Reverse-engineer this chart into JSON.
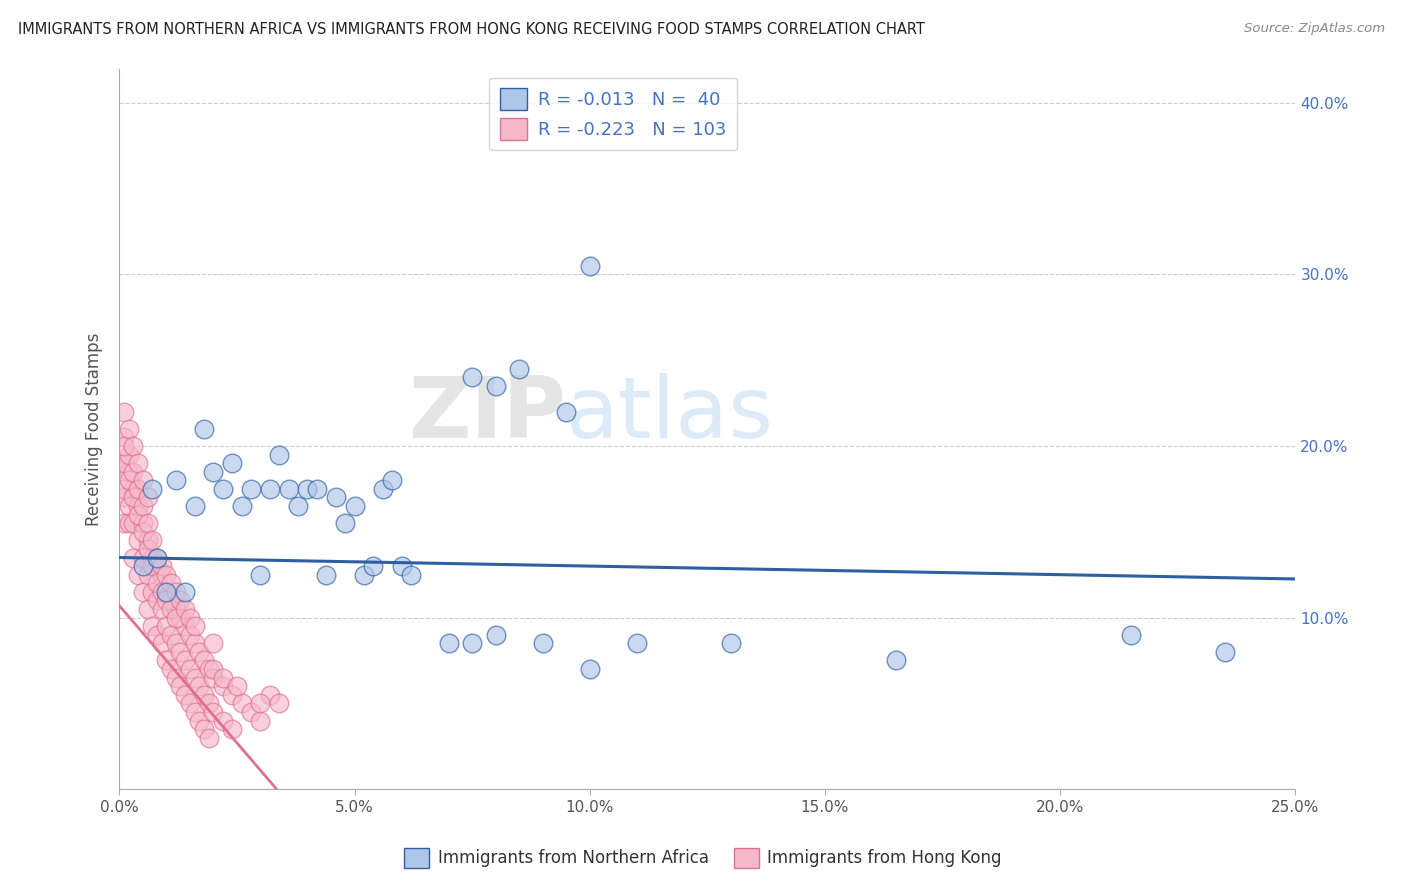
{
  "title": "IMMIGRANTS FROM NORTHERN AFRICA VS IMMIGRANTS FROM HONG KONG RECEIVING FOOD STAMPS CORRELATION CHART",
  "source": "Source: ZipAtlas.com",
  "ylabel": "Receiving Food Stamps",
  "xlim": [
    0.0,
    0.25
  ],
  "ylim": [
    0.0,
    0.42
  ],
  "xticks": [
    0.0,
    0.05,
    0.1,
    0.15,
    0.2,
    0.25
  ],
  "yticks": [
    0.0,
    0.1,
    0.2,
    0.3,
    0.4
  ],
  "xtick_labels": [
    "0.0%",
    "5.0%",
    "10.0%",
    "15.0%",
    "20.0%",
    "25.0%"
  ],
  "ytick_labels_right": [
    "",
    "10.0%",
    "20.0%",
    "30.0%",
    "40.0%"
  ],
  "color_blue": "#AEC6E8",
  "color_pink": "#F5B8CB",
  "trendline_blue_color": "#2E5FA3",
  "trendline_pink_color": "#E07090",
  "watermark_zip": "ZIP",
  "watermark_atlas": "atlas",
  "grid_color": "#CCCCCC",
  "background_color": "#FFFFFF",
  "legend_r1": "-0.013",
  "legend_n1": "40",
  "legend_r2": "-0.223",
  "legend_n2": "103",
  "blue_points": [
    [
      0.005,
      0.13
    ],
    [
      0.007,
      0.175
    ],
    [
      0.008,
      0.135
    ],
    [
      0.01,
      0.115
    ],
    [
      0.012,
      0.18
    ],
    [
      0.014,
      0.115
    ],
    [
      0.016,
      0.165
    ],
    [
      0.018,
      0.21
    ],
    [
      0.02,
      0.185
    ],
    [
      0.022,
      0.175
    ],
    [
      0.024,
      0.19
    ],
    [
      0.026,
      0.165
    ],
    [
      0.028,
      0.175
    ],
    [
      0.03,
      0.125
    ],
    [
      0.032,
      0.175
    ],
    [
      0.034,
      0.195
    ],
    [
      0.036,
      0.175
    ],
    [
      0.038,
      0.165
    ],
    [
      0.04,
      0.175
    ],
    [
      0.042,
      0.175
    ],
    [
      0.044,
      0.125
    ],
    [
      0.046,
      0.17
    ],
    [
      0.048,
      0.155
    ],
    [
      0.05,
      0.165
    ],
    [
      0.052,
      0.125
    ],
    [
      0.054,
      0.13
    ],
    [
      0.056,
      0.175
    ],
    [
      0.058,
      0.18
    ],
    [
      0.06,
      0.13
    ],
    [
      0.062,
      0.125
    ],
    [
      0.07,
      0.085
    ],
    [
      0.075,
      0.085
    ],
    [
      0.08,
      0.09
    ],
    [
      0.09,
      0.085
    ],
    [
      0.1,
      0.07
    ],
    [
      0.11,
      0.085
    ],
    [
      0.13,
      0.085
    ],
    [
      0.165,
      0.075
    ],
    [
      0.215,
      0.09
    ],
    [
      0.235,
      0.08
    ]
  ],
  "blue_high_points": [
    [
      0.1,
      0.305
    ],
    [
      0.085,
      0.245
    ],
    [
      0.095,
      0.22
    ],
    [
      0.075,
      0.24
    ],
    [
      0.08,
      0.235
    ]
  ],
  "pink_points": [
    [
      0.001,
      0.19
    ],
    [
      0.001,
      0.17
    ],
    [
      0.001,
      0.155
    ],
    [
      0.002,
      0.185
    ],
    [
      0.002,
      0.165
    ],
    [
      0.002,
      0.155
    ],
    [
      0.003,
      0.175
    ],
    [
      0.003,
      0.155
    ],
    [
      0.003,
      0.135
    ],
    [
      0.004,
      0.165
    ],
    [
      0.004,
      0.145
    ],
    [
      0.004,
      0.125
    ],
    [
      0.005,
      0.155
    ],
    [
      0.005,
      0.135
    ],
    [
      0.005,
      0.115
    ],
    [
      0.006,
      0.145
    ],
    [
      0.006,
      0.125
    ],
    [
      0.006,
      0.105
    ],
    [
      0.007,
      0.135
    ],
    [
      0.007,
      0.115
    ],
    [
      0.007,
      0.095
    ],
    [
      0.008,
      0.13
    ],
    [
      0.008,
      0.11
    ],
    [
      0.008,
      0.09
    ],
    [
      0.009,
      0.125
    ],
    [
      0.009,
      0.105
    ],
    [
      0.009,
      0.085
    ],
    [
      0.01,
      0.115
    ],
    [
      0.01,
      0.095
    ],
    [
      0.01,
      0.075
    ],
    [
      0.011,
      0.11
    ],
    [
      0.011,
      0.09
    ],
    [
      0.011,
      0.07
    ],
    [
      0.012,
      0.105
    ],
    [
      0.012,
      0.085
    ],
    [
      0.012,
      0.065
    ],
    [
      0.013,
      0.1
    ],
    [
      0.013,
      0.08
    ],
    [
      0.013,
      0.06
    ],
    [
      0.014,
      0.095
    ],
    [
      0.014,
      0.075
    ],
    [
      0.014,
      0.055
    ],
    [
      0.015,
      0.09
    ],
    [
      0.015,
      0.07
    ],
    [
      0.015,
      0.05
    ],
    [
      0.016,
      0.085
    ],
    [
      0.016,
      0.065
    ],
    [
      0.016,
      0.045
    ],
    [
      0.017,
      0.08
    ],
    [
      0.017,
      0.06
    ],
    [
      0.017,
      0.04
    ],
    [
      0.018,
      0.075
    ],
    [
      0.018,
      0.055
    ],
    [
      0.018,
      0.035
    ],
    [
      0.019,
      0.07
    ],
    [
      0.019,
      0.05
    ],
    [
      0.019,
      0.03
    ],
    [
      0.02,
      0.065
    ],
    [
      0.02,
      0.045
    ],
    [
      0.022,
      0.06
    ],
    [
      0.022,
      0.04
    ],
    [
      0.024,
      0.055
    ],
    [
      0.024,
      0.035
    ],
    [
      0.026,
      0.05
    ],
    [
      0.028,
      0.045
    ],
    [
      0.03,
      0.04
    ],
    [
      0.032,
      0.055
    ],
    [
      0.034,
      0.05
    ],
    [
      0.001,
      0.205
    ],
    [
      0.001,
      0.19
    ],
    [
      0.001,
      0.175
    ],
    [
      0.002,
      0.195
    ],
    [
      0.002,
      0.18
    ],
    [
      0.003,
      0.185
    ],
    [
      0.003,
      0.17
    ],
    [
      0.004,
      0.175
    ],
    [
      0.004,
      0.16
    ],
    [
      0.005,
      0.165
    ],
    [
      0.005,
      0.15
    ],
    [
      0.006,
      0.155
    ],
    [
      0.006,
      0.14
    ],
    [
      0.007,
      0.145
    ],
    [
      0.007,
      0.13
    ],
    [
      0.008,
      0.135
    ],
    [
      0.008,
      0.12
    ],
    [
      0.009,
      0.13
    ],
    [
      0.009,
      0.115
    ],
    [
      0.01,
      0.125
    ],
    [
      0.01,
      0.11
    ],
    [
      0.011,
      0.12
    ],
    [
      0.011,
      0.105
    ],
    [
      0.012,
      0.115
    ],
    [
      0.012,
      0.1
    ],
    [
      0.013,
      0.11
    ],
    [
      0.014,
      0.105
    ],
    [
      0.015,
      0.1
    ],
    [
      0.016,
      0.095
    ],
    [
      0.02,
      0.07
    ],
    [
      0.022,
      0.065
    ],
    [
      0.025,
      0.06
    ],
    [
      0.03,
      0.05
    ],
    [
      0.001,
      0.22
    ],
    [
      0.001,
      0.2
    ],
    [
      0.002,
      0.21
    ],
    [
      0.003,
      0.2
    ],
    [
      0.004,
      0.19
    ],
    [
      0.005,
      0.18
    ],
    [
      0.006,
      0.17
    ],
    [
      0.02,
      0.085
    ]
  ],
  "pink_high_points": [
    [
      0.001,
      0.215
    ],
    [
      0.002,
      0.205
    ]
  ]
}
